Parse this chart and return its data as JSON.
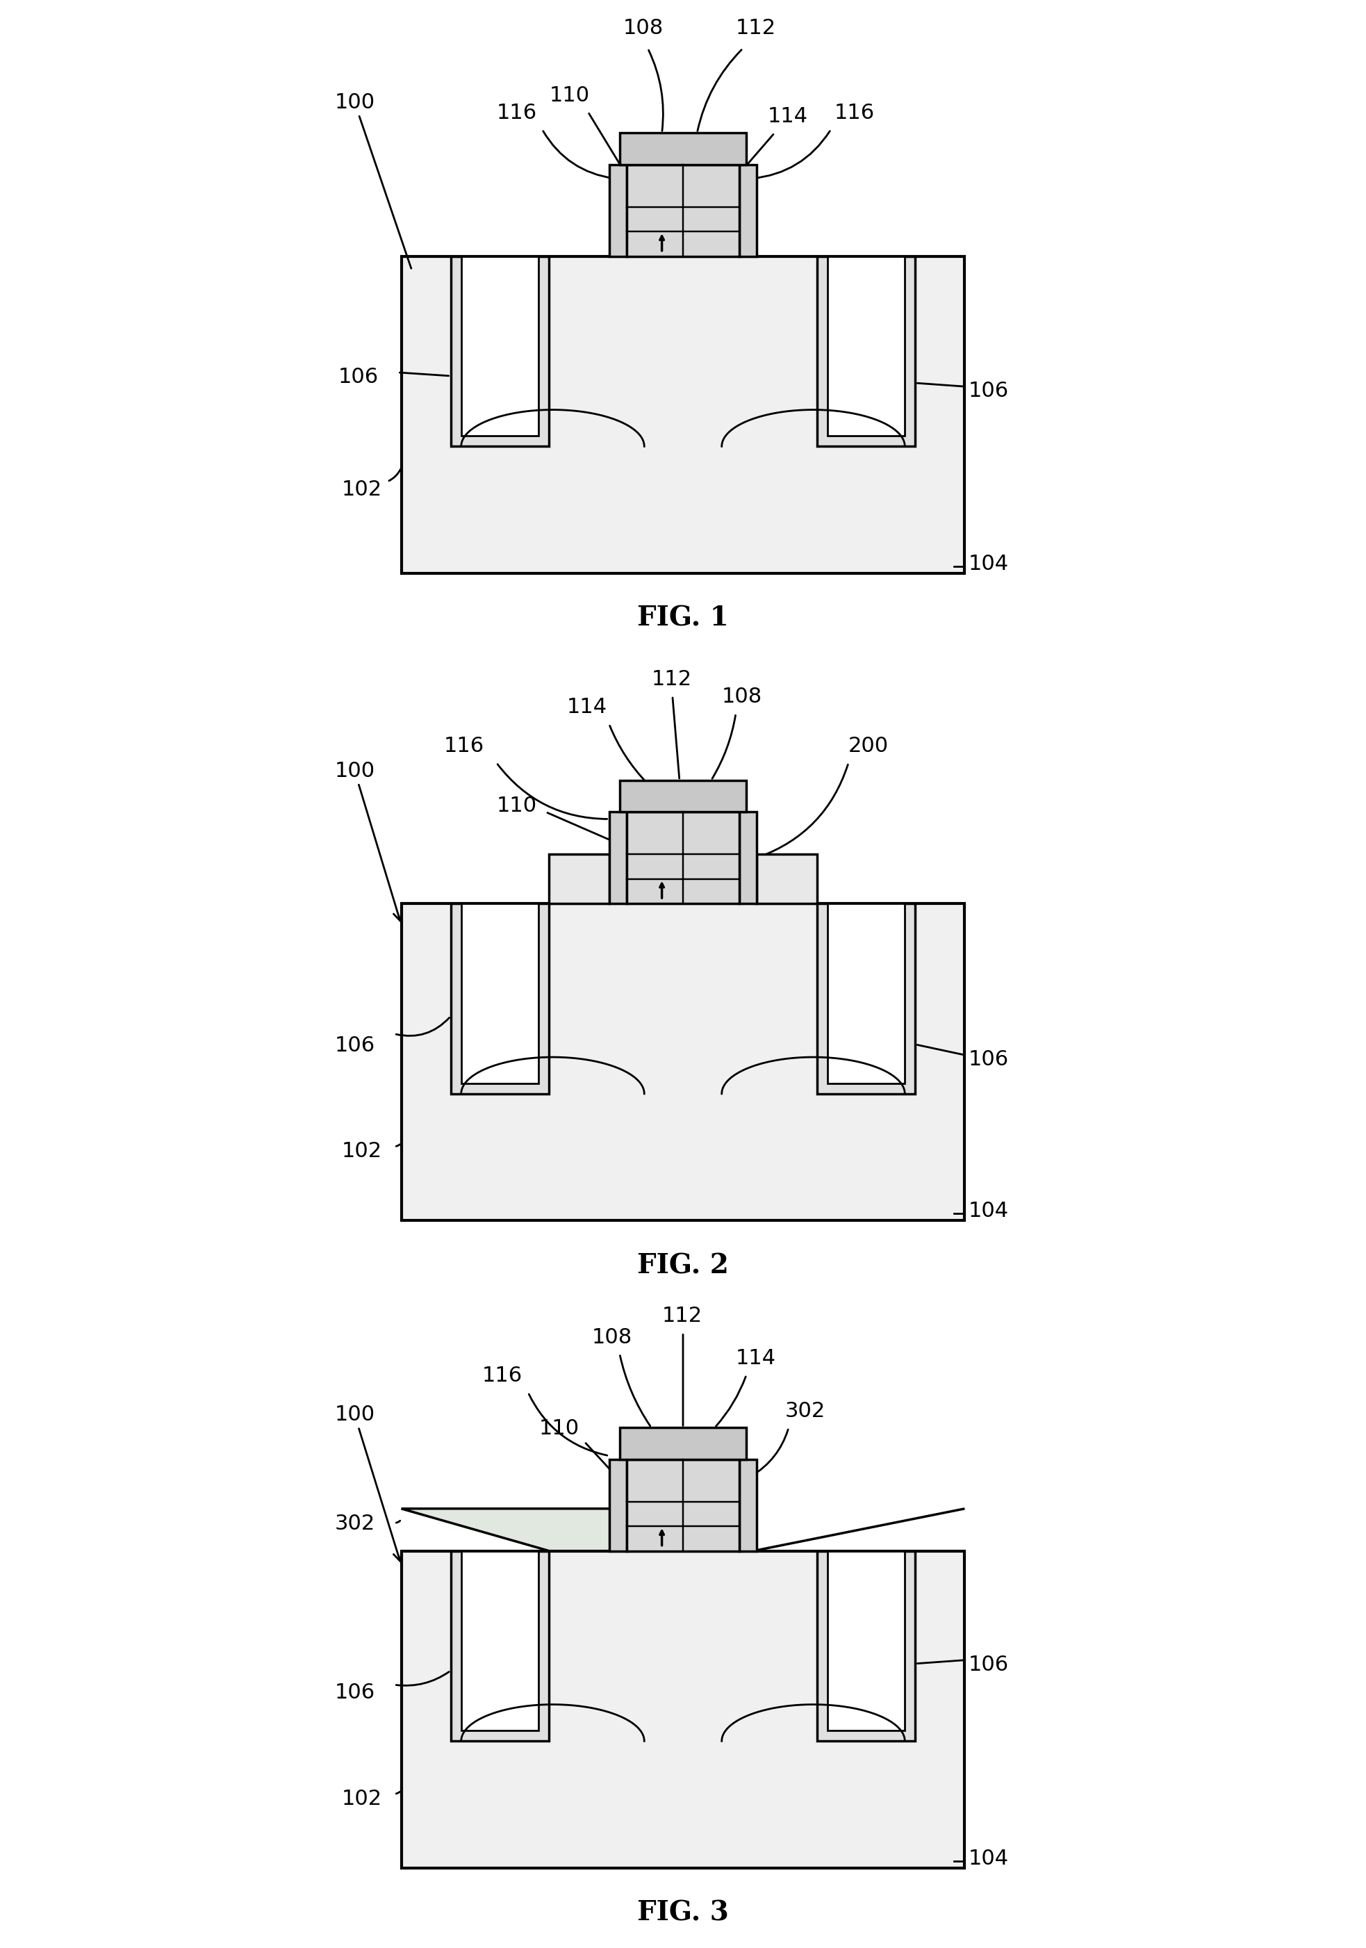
{
  "fig_labels": [
    "FIG. 1",
    "FIG. 2",
    "FIG. 3"
  ],
  "line_color": "#000000",
  "fill_color": "#ffffff",
  "bg_color": "#ffffff",
  "line_width": 2.5,
  "font_size_label": 28,
  "font_size_annot": 22,
  "substrate_fill": "#f0f0f0",
  "sti_fill": "#e0e0e0",
  "gate_fill": "#d8d8d8",
  "cap_fill": "#c8c8c8",
  "spacer_fill": "#d0d0d0",
  "strain_fill": "#e0e8e0"
}
